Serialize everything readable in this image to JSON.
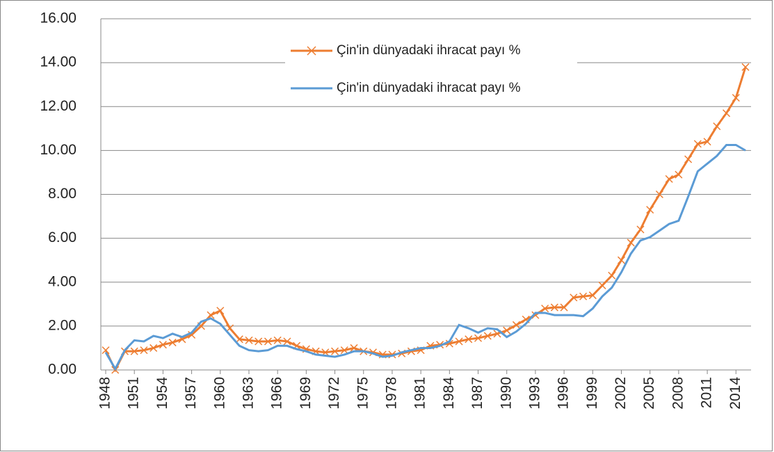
{
  "chart_data": {
    "type": "line",
    "x": [
      1948,
      1949,
      1950,
      1951,
      1952,
      1953,
      1954,
      1955,
      1956,
      1957,
      1958,
      1959,
      1960,
      1961,
      1962,
      1963,
      1964,
      1965,
      1966,
      1967,
      1968,
      1969,
      1970,
      1971,
      1972,
      1973,
      1974,
      1975,
      1976,
      1977,
      1978,
      1979,
      1980,
      1981,
      1982,
      1983,
      1984,
      1985,
      1986,
      1987,
      1988,
      1989,
      1990,
      1991,
      1992,
      1993,
      1994,
      1995,
      1996,
      1997,
      1998,
      1999,
      2000,
      2001,
      2002,
      2003,
      2004,
      2005,
      2006,
      2007,
      2008,
      2009,
      2010,
      2011,
      2012,
      2013,
      2014,
      2015
    ],
    "series": [
      {
        "name": "Çin'in dünyadaki ihracat payı %",
        "color": "#ed7d31",
        "marker": "x",
        "values": [
          0.9,
          0.0,
          0.85,
          0.85,
          0.9,
          1.0,
          1.15,
          1.25,
          1.4,
          1.6,
          2.0,
          2.5,
          2.7,
          1.9,
          1.4,
          1.35,
          1.3,
          1.3,
          1.35,
          1.3,
          1.1,
          0.95,
          0.85,
          0.8,
          0.85,
          0.9,
          1.0,
          0.85,
          0.8,
          0.7,
          0.7,
          0.75,
          0.85,
          0.9,
          1.1,
          1.15,
          1.2,
          1.3,
          1.4,
          1.45,
          1.55,
          1.65,
          1.8,
          2.05,
          2.3,
          2.5,
          2.8,
          2.85,
          2.85,
          3.3,
          3.35,
          3.4,
          3.85,
          4.3,
          5.0,
          5.8,
          6.4,
          7.3,
          8.0,
          8.7,
          8.9,
          9.6,
          10.3,
          10.4,
          11.1,
          11.7,
          12.4,
          13.8
        ]
      },
      {
        "name": "Çin'in dünyadaki ihracat payı %",
        "color": "#5b9bd5",
        "values": [
          0.8,
          0.05,
          0.9,
          1.35,
          1.3,
          1.55,
          1.45,
          1.65,
          1.5,
          1.7,
          2.2,
          2.35,
          2.1,
          1.6,
          1.1,
          0.9,
          0.85,
          0.9,
          1.1,
          1.1,
          0.95,
          0.85,
          0.7,
          0.65,
          0.6,
          0.7,
          0.85,
          0.85,
          0.75,
          0.6,
          0.65,
          0.8,
          0.9,
          1.0,
          1.0,
          1.1,
          1.3,
          2.05,
          1.9,
          1.7,
          1.9,
          1.85,
          1.5,
          1.75,
          2.1,
          2.6,
          2.6,
          2.5,
          2.5,
          2.5,
          2.45,
          2.8,
          3.35,
          3.75,
          4.45,
          5.3,
          5.9,
          6.05,
          6.35,
          6.65,
          6.8,
          7.9,
          9.05,
          9.4,
          9.75,
          10.25,
          10.25,
          10.0
        ]
      }
    ],
    "xlim": [
      1948,
      2015
    ],
    "xticks": [
      1948,
      1951,
      1954,
      1957,
      1960,
      1963,
      1966,
      1969,
      1972,
      1975,
      1978,
      1981,
      1984,
      1987,
      1990,
      1993,
      1996,
      1999,
      2002,
      2005,
      2008,
      2011,
      2014
    ],
    "ylim": [
      0,
      16
    ],
    "yticks": [
      {
        "value": 0,
        "label": "0.00"
      },
      {
        "value": 2,
        "label": "2.00"
      },
      {
        "value": 4,
        "label": "4.00"
      },
      {
        "value": 6,
        "label": "6.00"
      },
      {
        "value": 8,
        "label": "8.00"
      },
      {
        "value": 10,
        "label": "10.00"
      },
      {
        "value": 12,
        "label": "12.00"
      },
      {
        "value": 14,
        "label": "14.00"
      },
      {
        "value": 16,
        "label": "16.00"
      }
    ],
    "grid": true
  }
}
